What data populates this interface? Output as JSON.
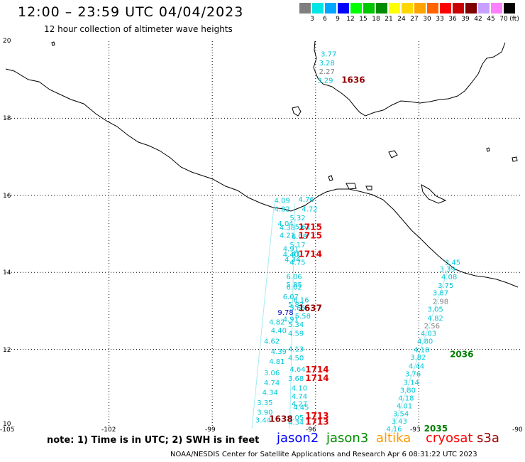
{
  "header": {
    "title": "12:00 – 23:59 UTC 04/04/2023",
    "subtitle": "12 hour collection of altimeter wave heights"
  },
  "colorbar": {
    "unit_label": "(ft)",
    "bins": [
      {
        "label": "",
        "color": "#7f7f7f"
      },
      {
        "label": "3",
        "color": "#00e5e5"
      },
      {
        "label": "6",
        "color": "#00a6ff"
      },
      {
        "label": "9",
        "color": "#0000ff"
      },
      {
        "label": "12",
        "color": "#00ff00"
      },
      {
        "label": "15",
        "color": "#00c800"
      },
      {
        "label": "18",
        "color": "#008c00"
      },
      {
        "label": "21",
        "color": "#ffff00"
      },
      {
        "label": "24",
        "color": "#ffd700"
      },
      {
        "label": "27",
        "color": "#ffa500"
      },
      {
        "label": "30",
        "color": "#ff6400"
      },
      {
        "label": "33",
        "color": "#ff0000"
      },
      {
        "label": "36",
        "color": "#c80000"
      },
      {
        "label": "39",
        "color": "#800000"
      },
      {
        "label": "42",
        "color": "#c8a0ff"
      },
      {
        "label": "45",
        "color": "#ff80ff"
      },
      {
        "label": "70",
        "color": "#000000"
      }
    ]
  },
  "axes": {
    "lon_labels": [
      "-105",
      "-102",
      "-99",
      "-96",
      "-93",
      "-90"
    ],
    "lat_labels": [
      "20",
      "18",
      "16",
      "14",
      "12",
      "10"
    ]
  },
  "footer": {
    "note": "note: 1) Time is in UTC; 2) SWH is in feet",
    "credit": "NOAA/NESDIS Center for Satellite Applications and Research   Apr  6 08:31:22 UTC 2023",
    "satellites": [
      {
        "name": "jason2",
        "color": "#0000ff"
      },
      {
        "name": "jason3",
        "color": "#008c00"
      },
      {
        "name": "altika",
        "color": "#ff9900"
      },
      {
        "name": "cryosat",
        "color": "#ff0000"
      },
      {
        "name": "s3a",
        "color": "#a00000"
      }
    ]
  },
  "wave_colors": {
    "cyan": "#00c8d8",
    "gray": "#7f7f7f",
    "blue": "#0000cc"
  },
  "time_colors": {
    "red": "#e00000",
    "maroon": "#900000",
    "green": "#008000"
  },
  "wave_labels": [
    {
      "lon": -95.85,
      "lat": 19.6,
      "text": "3.77",
      "c": "cyan"
    },
    {
      "lon": -95.9,
      "lat": 19.37,
      "text": "3.28",
      "c": "cyan"
    },
    {
      "lon": -95.9,
      "lat": 19.15,
      "text": "2.27",
      "c": "gray"
    },
    {
      "lon": -95.95,
      "lat": 18.92,
      "text": "3.29",
      "c": "cyan"
    },
    {
      "lon": -97.2,
      "lat": 15.8,
      "text": "4.09",
      "c": "cyan"
    },
    {
      "lon": -96.5,
      "lat": 15.83,
      "text": "4.76",
      "c": "cyan"
    },
    {
      "lon": -97.2,
      "lat": 15.58,
      "text": "4.82",
      "c": "cyan"
    },
    {
      "lon": -96.4,
      "lat": 15.58,
      "text": "4.72",
      "c": "cyan"
    },
    {
      "lon": -96.75,
      "lat": 15.35,
      "text": "5.32",
      "c": "cyan"
    },
    {
      "lon": -97.1,
      "lat": 15.2,
      "text": "4.04",
      "c": "cyan"
    },
    {
      "lon": -97.05,
      "lat": 15.1,
      "text": "4.38",
      "c": "cyan"
    },
    {
      "lon": -96.6,
      "lat": 15.12,
      "text": "5.61",
      "c": "cyan"
    },
    {
      "lon": -97.05,
      "lat": 14.9,
      "text": "4.21",
      "c": "cyan"
    },
    {
      "lon": -96.7,
      "lat": 14.87,
      "text": "6.08",
      "c": "cyan"
    },
    {
      "lon": -96.75,
      "lat": 14.65,
      "text": "5.17",
      "c": "cyan"
    },
    {
      "lon": -96.95,
      "lat": 14.55,
      "text": "4.91",
      "c": "cyan"
    },
    {
      "lon": -96.95,
      "lat": 14.4,
      "text": "4.40",
      "c": "cyan"
    },
    {
      "lon": -96.7,
      "lat": 14.42,
      "text": "41",
      "c": "cyan"
    },
    {
      "lon": -96.9,
      "lat": 14.27,
      "text": "4.34",
      "c": "cyan"
    },
    {
      "lon": -96.75,
      "lat": 14.2,
      "text": "4.75",
      "c": "cyan"
    },
    {
      "lon": -96.85,
      "lat": 13.83,
      "text": "6.06",
      "c": "cyan"
    },
    {
      "lon": -96.85,
      "lat": 13.62,
      "text": "5.85",
      "c": "cyan"
    },
    {
      "lon": -96.85,
      "lat": 13.55,
      "text": "6.02",
      "c": "cyan"
    },
    {
      "lon": -96.95,
      "lat": 13.3,
      "text": "6.07",
      "c": "cyan"
    },
    {
      "lon": -96.65,
      "lat": 13.22,
      "text": "6.16",
      "c": "cyan"
    },
    {
      "lon": -96.8,
      "lat": 13.1,
      "text": "5.87",
      "c": "cyan"
    },
    {
      "lon": -96.75,
      "lat": 13.02,
      "text": "5.65",
      "c": "cyan"
    },
    {
      "lon": -97.1,
      "lat": 12.9,
      "text": "9.78",
      "c": "blue"
    },
    {
      "lon": -96.6,
      "lat": 12.8,
      "text": "5.58",
      "c": "cyan"
    },
    {
      "lon": -97.35,
      "lat": 12.65,
      "text": "4.82",
      "c": "cyan"
    },
    {
      "lon": -96.95,
      "lat": 12.72,
      "text": "4.91",
      "c": "cyan"
    },
    {
      "lon": -96.8,
      "lat": 12.58,
      "text": "5.34",
      "c": "cyan"
    },
    {
      "lon": -97.3,
      "lat": 12.43,
      "text": "4.40",
      "c": "cyan"
    },
    {
      "lon": -96.8,
      "lat": 12.35,
      "text": "4.59",
      "c": "cyan"
    },
    {
      "lon": -97.5,
      "lat": 12.15,
      "text": "4.62",
      "c": "cyan"
    },
    {
      "lon": -97.3,
      "lat": 11.88,
      "text": "4.39",
      "c": "cyan"
    },
    {
      "lon": -96.8,
      "lat": 11.95,
      "text": "4.13",
      "c": "cyan"
    },
    {
      "lon": -97.35,
      "lat": 11.62,
      "text": "4.81",
      "c": "cyan"
    },
    {
      "lon": -96.8,
      "lat": 11.72,
      "text": "4.50",
      "c": "cyan"
    },
    {
      "lon": -97.5,
      "lat": 11.33,
      "text": "3.06",
      "c": "cyan"
    },
    {
      "lon": -96.75,
      "lat": 11.42,
      "text": "4.64",
      "c": "cyan"
    },
    {
      "lon": -97.5,
      "lat": 11.07,
      "text": "4.74",
      "c": "cyan"
    },
    {
      "lon": -96.8,
      "lat": 11.18,
      "text": "3.68",
      "c": "cyan"
    },
    {
      "lon": -96.7,
      "lat": 10.93,
      "text": "4.10",
      "c": "cyan"
    },
    {
      "lon": -97.55,
      "lat": 10.82,
      "text": "4.34",
      "c": "cyan"
    },
    {
      "lon": -96.7,
      "lat": 10.72,
      "text": "4.74",
      "c": "cyan"
    },
    {
      "lon": -97.7,
      "lat": 10.55,
      "text": "3.35",
      "c": "cyan"
    },
    {
      "lon": -96.7,
      "lat": 10.53,
      "text": "4.27",
      "c": "cyan"
    },
    {
      "lon": -96.65,
      "lat": 10.43,
      "text": "4.45",
      "c": "cyan"
    },
    {
      "lon": -97.7,
      "lat": 10.3,
      "text": "3.90",
      "c": "cyan"
    },
    {
      "lon": -96.8,
      "lat": 10.17,
      "text": "4.05",
      "c": "cyan"
    },
    {
      "lon": -97.75,
      "lat": 10.1,
      "text": "3.44",
      "c": "cyan"
    },
    {
      "lon": -96.8,
      "lat": 10.05,
      "text": "4.34",
      "c": "cyan"
    },
    {
      "lon": -92.25,
      "lat": 14.2,
      "text": "3.45",
      "c": "cyan"
    },
    {
      "lon": -92.4,
      "lat": 14.02,
      "text": "3.39",
      "c": "cyan"
    },
    {
      "lon": -92.35,
      "lat": 13.82,
      "text": "4.08",
      "c": "cyan"
    },
    {
      "lon": -92.45,
      "lat": 13.6,
      "text": "3.75",
      "c": "cyan"
    },
    {
      "lon": -92.6,
      "lat": 13.4,
      "text": "3.87",
      "c": "cyan"
    },
    {
      "lon": -92.6,
      "lat": 13.18,
      "text": "2.98",
      "c": "gray"
    },
    {
      "lon": -92.75,
      "lat": 12.98,
      "text": "3.05",
      "c": "cyan"
    },
    {
      "lon": -92.75,
      "lat": 12.75,
      "text": "4.82",
      "c": "cyan"
    },
    {
      "lon": -92.85,
      "lat": 12.55,
      "text": "2.56",
      "c": "gray"
    },
    {
      "lon": -92.95,
      "lat": 12.35,
      "text": "4.03",
      "c": "cyan"
    },
    {
      "lon": -93.05,
      "lat": 12.15,
      "text": "4.80",
      "c": "cyan"
    },
    {
      "lon": -93.15,
      "lat": 11.93,
      "text": "4.18",
      "c": "cyan"
    },
    {
      "lon": -93.25,
      "lat": 11.73,
      "text": "3.82",
      "c": "cyan"
    },
    {
      "lon": -93.3,
      "lat": 11.5,
      "text": "4.44",
      "c": "cyan"
    },
    {
      "lon": -93.4,
      "lat": 11.3,
      "text": "3.76",
      "c": "cyan"
    },
    {
      "lon": -93.45,
      "lat": 11.08,
      "text": "3.14",
      "c": "cyan"
    },
    {
      "lon": -93.55,
      "lat": 10.88,
      "text": "3.80",
      "c": "cyan"
    },
    {
      "lon": -93.6,
      "lat": 10.67,
      "text": "4.18",
      "c": "cyan"
    },
    {
      "lon": -93.65,
      "lat": 10.47,
      "text": "4.01",
      "c": "cyan"
    },
    {
      "lon": -93.75,
      "lat": 10.27,
      "text": "3.54",
      "c": "cyan"
    },
    {
      "lon": -93.8,
      "lat": 10.07,
      "text": "3.43",
      "c": "cyan"
    },
    {
      "lon": -93.95,
      "lat": 9.87,
      "text": "4.16",
      "c": "cyan"
    }
  ],
  "time_labels": [
    {
      "lon": -95.25,
      "lat": 18.92,
      "text": "1636",
      "c": "maroon"
    },
    {
      "lon": -96.5,
      "lat": 15.1,
      "text": "1715",
      "c": "red"
    },
    {
      "lon": -96.5,
      "lat": 14.88,
      "text": "1715",
      "c": "red"
    },
    {
      "lon": -96.5,
      "lat": 14.4,
      "text": "1714",
      "c": "red"
    },
    {
      "lon": -96.5,
      "lat": 13.0,
      "text": "1637",
      "c": "maroon"
    },
    {
      "lon": -96.3,
      "lat": 11.4,
      "text": "1714",
      "c": "red"
    },
    {
      "lon": -96.3,
      "lat": 11.18,
      "text": "1714",
      "c": "red"
    },
    {
      "lon": -97.35,
      "lat": 10.12,
      "text": "1638",
      "c": "maroon"
    },
    {
      "lon": -96.3,
      "lat": 10.2,
      "text": "1713",
      "c": "red"
    },
    {
      "lon": -96.3,
      "lat": 10.05,
      "text": "1713",
      "c": "red"
    },
    {
      "lon": -92.1,
      "lat": 11.8,
      "text": "2036",
      "c": "green"
    },
    {
      "lon": -92.85,
      "lat": 9.87,
      "text": "2035",
      "c": "green"
    }
  ],
  "ground_tracks": [
    {
      "c": "cyan",
      "from": [
        -97.2,
        15.8
      ],
      "to": [
        -97.85,
        9.95
      ]
    },
    {
      "c": "cyan",
      "from": [
        -96.6,
        15.8
      ],
      "to": [
        -96.75,
        9.95
      ]
    },
    {
      "c": "cyan",
      "from": [
        -92.1,
        14.2
      ],
      "to": [
        -93.8,
        9.8
      ]
    }
  ]
}
